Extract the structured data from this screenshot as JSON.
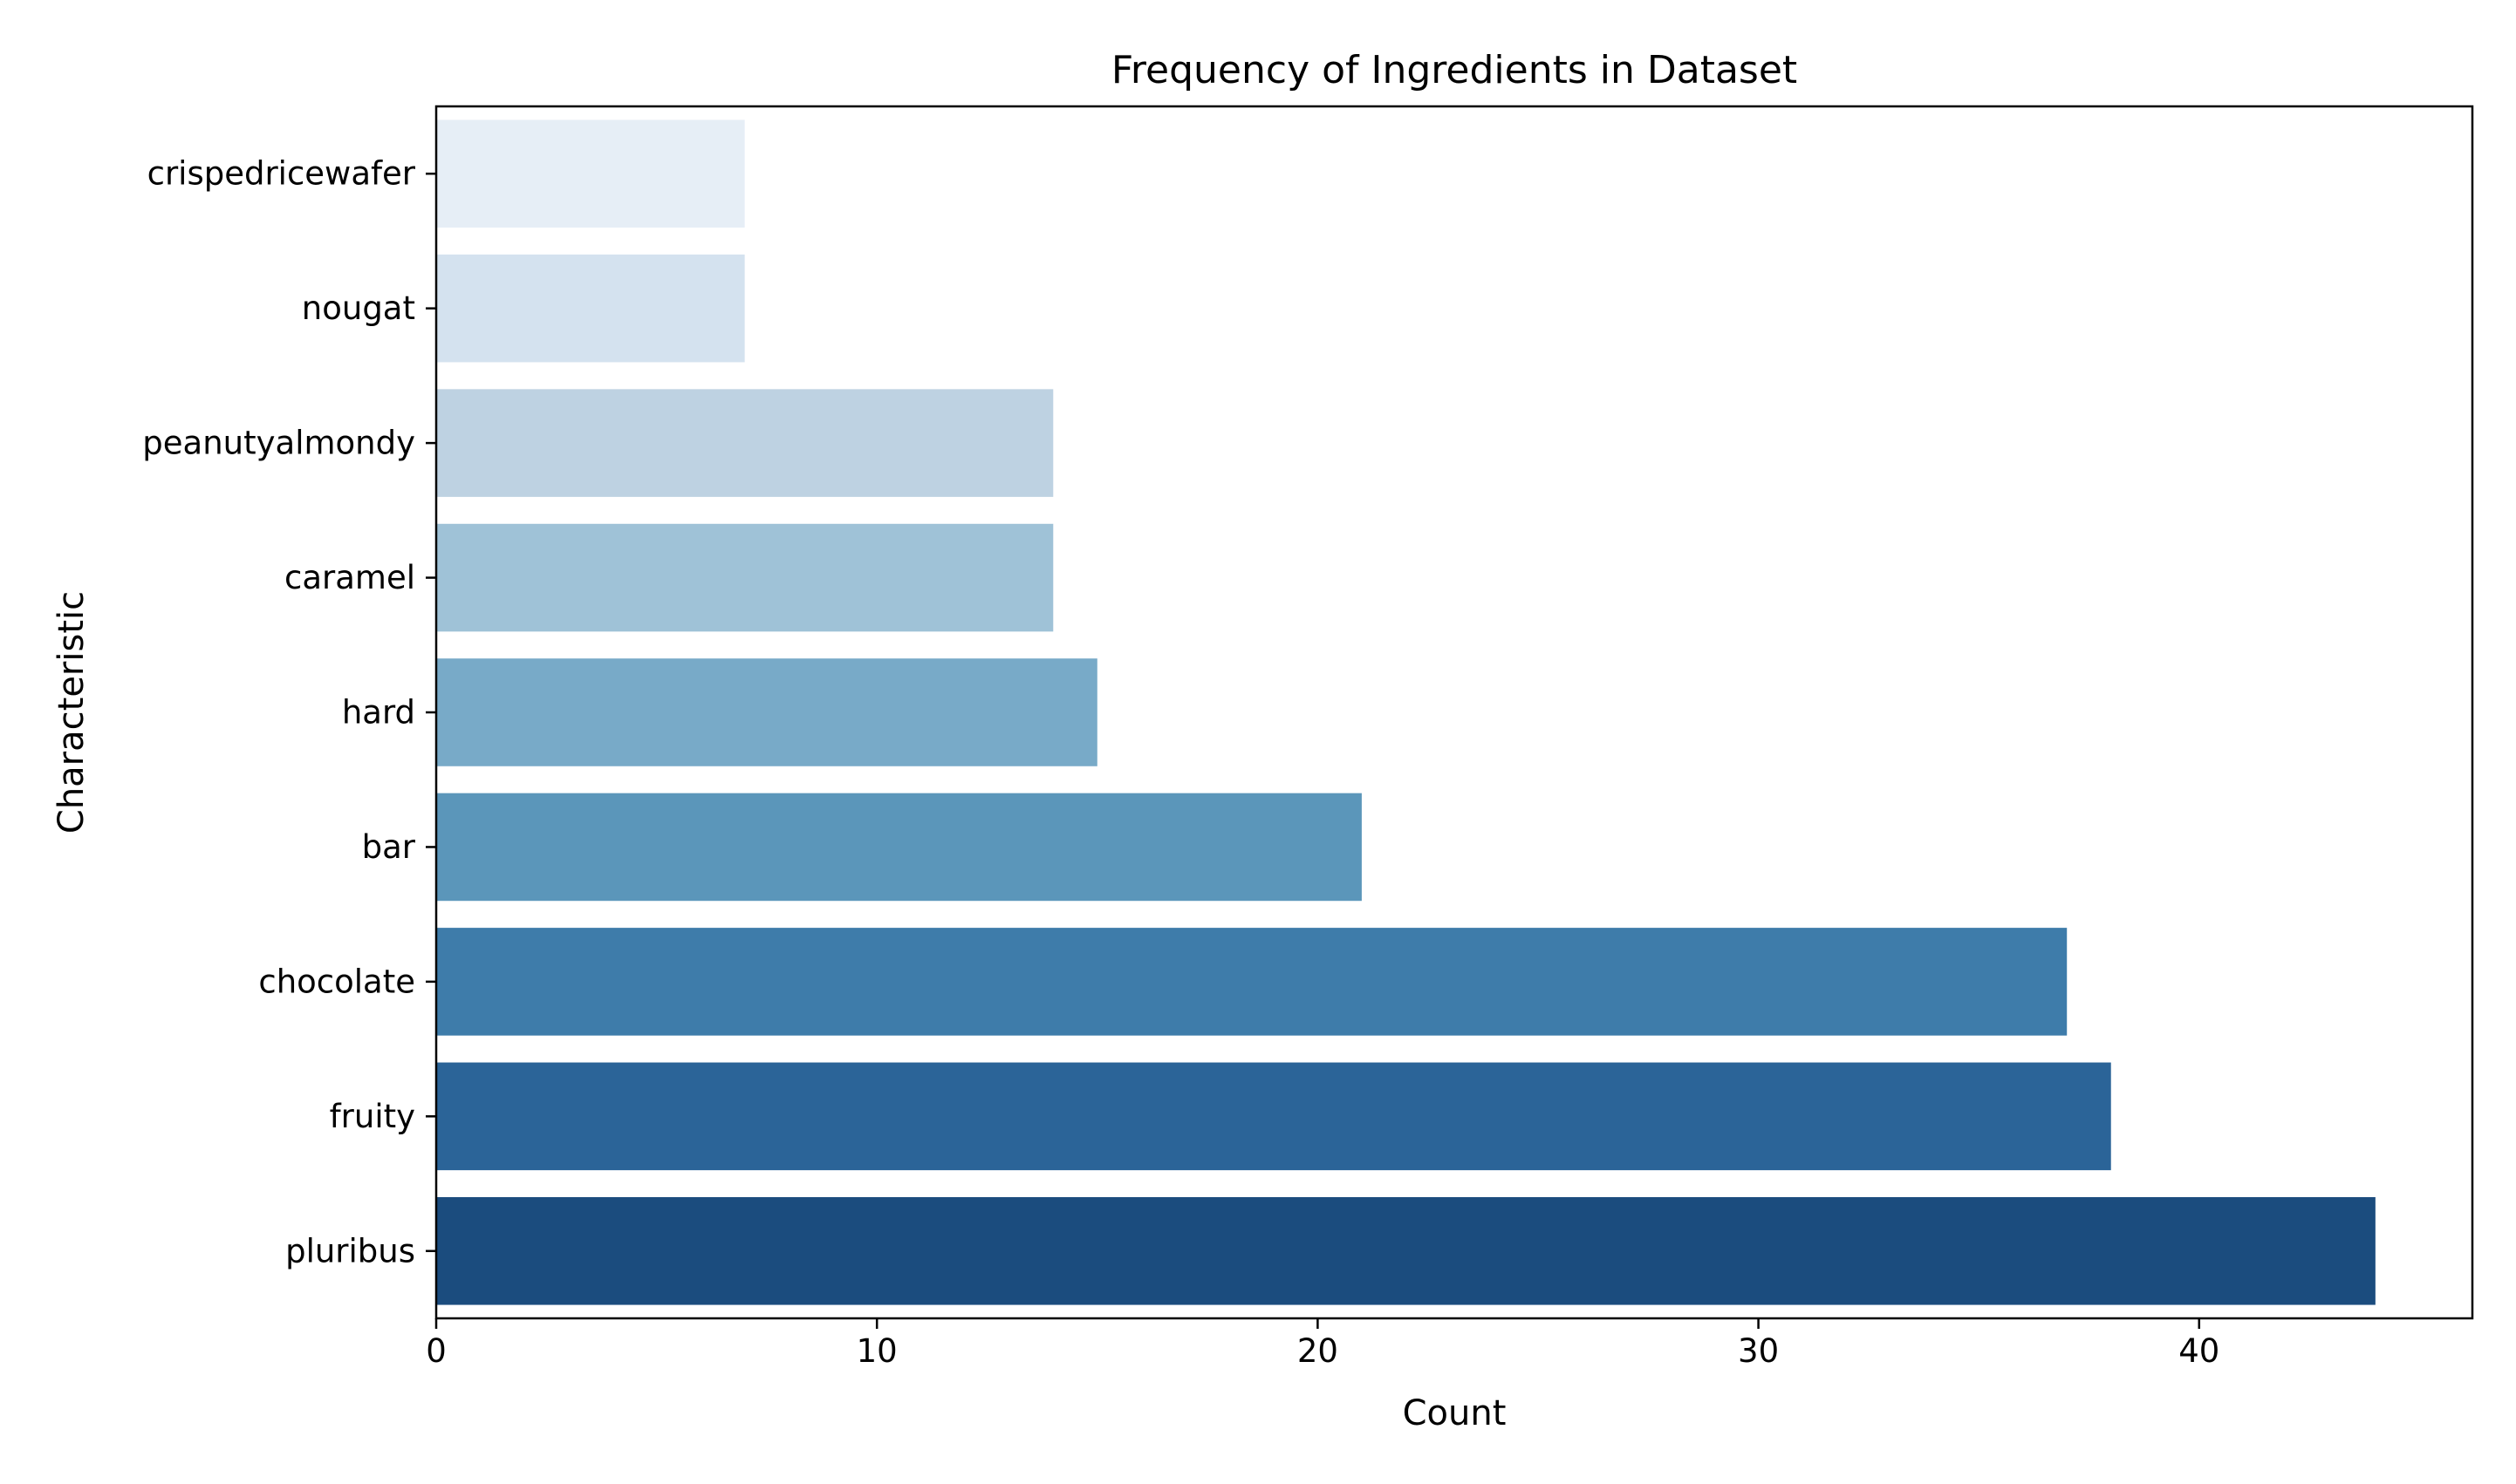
{
  "chart_data": {
    "type": "bar",
    "orientation": "horizontal",
    "title": "Frequency of Ingredients in Dataset",
    "xlabel": "Count",
    "ylabel": "Characteristic",
    "categories": [
      "crispedricewafer",
      "nougat",
      "peanutyalmondy",
      "caramel",
      "hard",
      "bar",
      "chocolate",
      "fruity",
      "pluribus"
    ],
    "values": [
      7,
      7,
      14,
      14,
      15,
      21,
      37,
      38,
      44
    ],
    "colors": [
      "#e6eef6",
      "#d4e2ef",
      "#bed2e2",
      "#9fc2d7",
      "#78aac8",
      "#5b96ba",
      "#3e7caa",
      "#2b6498",
      "#1b4c7e"
    ],
    "xlim": [
      0,
      46.2
    ],
    "xticks": [
      0,
      10,
      20,
      30,
      40
    ],
    "grid": false,
    "legend": "none"
  }
}
